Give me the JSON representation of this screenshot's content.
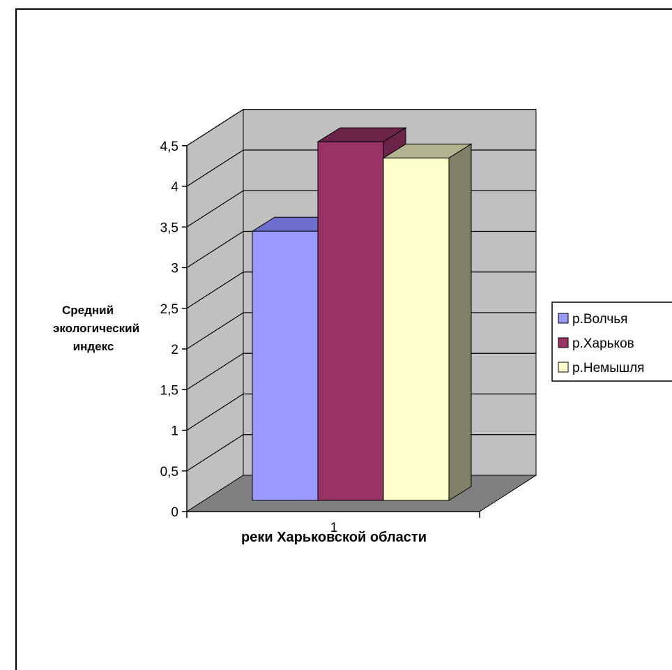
{
  "chart_data": {
    "type": "bar",
    "categories": [
      "1"
    ],
    "series": [
      {
        "name": "р.Волчья",
        "values": [
          3.5
        ],
        "color": "#9999ff",
        "top_color": "#6e6ecc",
        "side_color": "#7373bf"
      },
      {
        "name": "р.Харьков",
        "values": [
          4.6
        ],
        "color": "#993366",
        "top_color": "#6b2447",
        "side_color": "#6b2447"
      },
      {
        "name": "р.Немышля",
        "values": [
          4.4
        ],
        "color": "#ffffcc",
        "top_color": "#b3b38f",
        "side_color": "#808066"
      }
    ],
    "title": "",
    "xlabel": "реки Харьковской области",
    "ylabel_lines": [
      "Средний",
      "экологический",
      "индекс"
    ],
    "ylim": [
      0,
      4.5
    ],
    "yticks": [
      "0",
      "0,5",
      "1",
      "1,5",
      "2",
      "2,5",
      "3",
      "3,5",
      "4",
      "4,5"
    ],
    "grid": true,
    "legend_position": "right",
    "three_d": true,
    "colors": {
      "wall": "#c0c0c0",
      "floor": "#808080",
      "grid": "#000000"
    }
  }
}
